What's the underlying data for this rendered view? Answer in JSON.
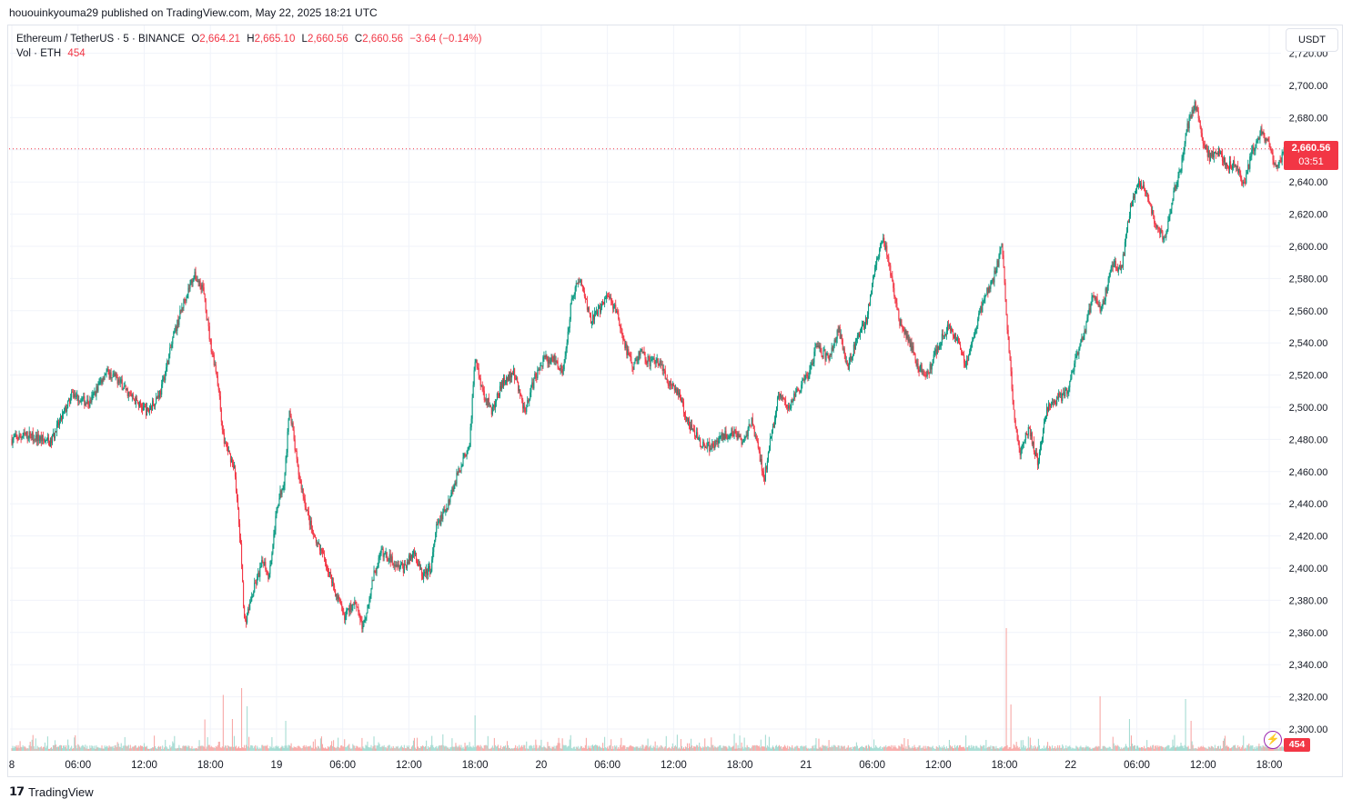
{
  "published_line": "hououinkyouma29 published on TradingView.com, May 22, 2025 18:21 UTC",
  "legend": {
    "symbol": "Ethereum / TetherUS · 5 · BINANCE",
    "o_label": "O",
    "o": "2,664.21",
    "h_label": "H",
    "h": "2,665.10",
    "l_label": "L",
    "l": "2,660.56",
    "c_label": "C",
    "c": "2,660.56",
    "change": "−3.64 (−0.14%)",
    "vol_label": "Vol · ETH",
    "vol_value": "454"
  },
  "unit_button": "USDT",
  "last_price_label": "2,660.56",
  "countdown": "03:51",
  "volume_tag": "454",
  "footer_brand": "TradingView",
  "colors": {
    "up": "#089981",
    "down": "#f23645",
    "grid": "#f0f3fa",
    "text": "#131722",
    "accent": "#f23645"
  },
  "icons": {
    "brand": "tradingview-logo-icon",
    "bolt": "lightning-icon"
  },
  "chart_data": {
    "type": "candlestick",
    "symbol": "ETHUSDT",
    "ylim": [
      2290,
      2728
    ],
    "y_ticks": [
      2300,
      2320,
      2340,
      2360,
      2380,
      2400,
      2420,
      2440,
      2460,
      2480,
      2500,
      2520,
      2540,
      2560,
      2580,
      2600,
      2620,
      2640,
      2660,
      2680,
      2700,
      2720
    ],
    "y_tick_labels": [
      "2,300.00",
      "2,320.00",
      "2,340.00",
      "2,360.00",
      "2,380.00",
      "2,400.00",
      "2,420.00",
      "2,440.00",
      "2,460.00",
      "2,480.00",
      "2,500.00",
      "2,520.00",
      "2,540.00",
      "2,560.00",
      "2,580.00",
      "2,600.00",
      "2,620.00",
      "2,640.00",
      "2,660.00",
      "2,680.00",
      "2,700.00",
      "2,720.00"
    ],
    "x_ticks": [
      {
        "label": "8",
        "hours": 0
      },
      {
        "label": "06:00",
        "hours": 6
      },
      {
        "label": "12:00",
        "hours": 12
      },
      {
        "label": "18:00",
        "hours": 18
      },
      {
        "label": "19",
        "hours": 24
      },
      {
        "label": "06:00",
        "hours": 30
      },
      {
        "label": "12:00",
        "hours": 36
      },
      {
        "label": "18:00",
        "hours": 42
      },
      {
        "label": "20",
        "hours": 48
      },
      {
        "label": "06:00",
        "hours": 54
      },
      {
        "label": "12:00",
        "hours": 60
      },
      {
        "label": "18:00",
        "hours": 66
      },
      {
        "label": "21",
        "hours": 72
      },
      {
        "label": "06:00",
        "hours": 78
      },
      {
        "label": "12:00",
        "hours": 84
      },
      {
        "label": "18:00",
        "hours": 90
      },
      {
        "label": "22",
        "hours": 96
      },
      {
        "label": "06:00",
        "hours": 102
      },
      {
        "label": "12:00",
        "hours": 108
      },
      {
        "label": "18:00",
        "hours": 114
      }
    ],
    "x_range_hours": [
      0,
      115.4
    ],
    "price_path": [
      [
        0,
        2480
      ],
      [
        1.5,
        2483
      ],
      [
        3.5,
        2478
      ],
      [
        5.5,
        2508
      ],
      [
        7,
        2502
      ],
      [
        8.5,
        2522
      ],
      [
        9.5,
        2518
      ],
      [
        11,
        2505
      ],
      [
        12.3,
        2497
      ],
      [
        13.5,
        2510
      ],
      [
        14.7,
        2545
      ],
      [
        15.7,
        2568
      ],
      [
        16.5,
        2582
      ],
      [
        17.3,
        2575
      ],
      [
        18,
        2540
      ],
      [
        18.6,
        2520
      ],
      [
        19.2,
        2480
      ],
      [
        20.2,
        2462
      ],
      [
        20.8,
        2408
      ],
      [
        21.1,
        2365
      ],
      [
        22,
        2388
      ],
      [
        22.8,
        2405
      ],
      [
        23.3,
        2395
      ],
      [
        24.1,
        2440
      ],
      [
        24.7,
        2455
      ],
      [
        25.2,
        2500
      ],
      [
        25.9,
        2462
      ],
      [
        26.6,
        2440
      ],
      [
        27.4,
        2418
      ],
      [
        28.4,
        2405
      ],
      [
        29.2,
        2388
      ],
      [
        30.1,
        2370
      ],
      [
        31.2,
        2380
      ],
      [
        31.8,
        2362
      ],
      [
        32.8,
        2395
      ],
      [
        33.5,
        2410
      ],
      [
        34.5,
        2405
      ],
      [
        35.5,
        2400
      ],
      [
        36.5,
        2410
      ],
      [
        37.2,
        2395
      ],
      [
        38,
        2400
      ],
      [
        38.5,
        2425
      ],
      [
        39.5,
        2440
      ],
      [
        40.5,
        2460
      ],
      [
        41.5,
        2478
      ],
      [
        42,
        2530
      ],
      [
        42.8,
        2508
      ],
      [
        43.5,
        2498
      ],
      [
        44.5,
        2515
      ],
      [
        45.5,
        2522
      ],
      [
        46.5,
        2498
      ],
      [
        47.5,
        2520
      ],
      [
        48.3,
        2530
      ],
      [
        49.3,
        2530
      ],
      [
        50,
        2522
      ],
      [
        50.8,
        2570
      ],
      [
        51.5,
        2580
      ],
      [
        52.5,
        2555
      ],
      [
        53.3,
        2560
      ],
      [
        54,
        2570
      ],
      [
        54.8,
        2560
      ],
      [
        55.5,
        2540
      ],
      [
        56.3,
        2525
      ],
      [
        57,
        2535
      ],
      [
        57.8,
        2528
      ],
      [
        58.5,
        2530
      ],
      [
        59.3,
        2518
      ],
      [
        60.3,
        2510
      ],
      [
        61.5,
        2488
      ],
      [
        62.5,
        2478
      ],
      [
        63.5,
        2475
      ],
      [
        64.5,
        2482
      ],
      [
        65.5,
        2485
      ],
      [
        66.3,
        2478
      ],
      [
        67.1,
        2492
      ],
      [
        67.8,
        2470
      ],
      [
        68.2,
        2455
      ],
      [
        68.8,
        2480
      ],
      [
        69.6,
        2510
      ],
      [
        70.4,
        2500
      ],
      [
        71.3,
        2510
      ],
      [
        72.2,
        2520
      ],
      [
        73,
        2538
      ],
      [
        74,
        2530
      ],
      [
        75,
        2548
      ],
      [
        75.8,
        2525
      ],
      [
        76.5,
        2540
      ],
      [
        77.5,
        2555
      ],
      [
        78.3,
        2590
      ],
      [
        79,
        2605
      ],
      [
        79.5,
        2590
      ],
      [
        80.4,
        2555
      ],
      [
        81.3,
        2542
      ],
      [
        82.2,
        2525
      ],
      [
        83,
        2520
      ],
      [
        84,
        2538
      ],
      [
        84.8,
        2550
      ],
      [
        85.8,
        2540
      ],
      [
        86.5,
        2525
      ],
      [
        87.3,
        2548
      ],
      [
        88.2,
        2568
      ],
      [
        89,
        2580
      ],
      [
        89.8,
        2600
      ],
      [
        90.3,
        2545
      ],
      [
        90.8,
        2500
      ],
      [
        91.4,
        2470
      ],
      [
        92.2,
        2488
      ],
      [
        93,
        2465
      ],
      [
        93.8,
        2498
      ],
      [
        94.8,
        2505
      ],
      [
        95.7,
        2510
      ],
      [
        96.5,
        2530
      ],
      [
        97.2,
        2545
      ],
      [
        98,
        2570
      ],
      [
        98.8,
        2560
      ],
      [
        99.8,
        2590
      ],
      [
        100.6,
        2585
      ],
      [
        101.4,
        2625
      ],
      [
        102.3,
        2640
      ],
      [
        103,
        2632
      ],
      [
        103.8,
        2610
      ],
      [
        104.6,
        2605
      ],
      [
        105.4,
        2635
      ],
      [
        106,
        2650
      ],
      [
        106.6,
        2675
      ],
      [
        107.3,
        2688
      ],
      [
        107.9,
        2668
      ],
      [
        108.6,
        2655
      ],
      [
        109.4,
        2660
      ],
      [
        110.2,
        2650
      ],
      [
        111,
        2652
      ],
      [
        111.7,
        2638
      ],
      [
        112.5,
        2660
      ],
      [
        113.3,
        2672
      ],
      [
        114,
        2662
      ],
      [
        114.7,
        2648
      ],
      [
        115.4,
        2660.56
      ]
    ],
    "volume_spikes": [
      {
        "hours": 17.5,
        "value": 690
      },
      {
        "hours": 19.2,
        "value": 1230
      },
      {
        "hours": 20,
        "value": 700
      },
      {
        "hours": 20.8,
        "value": 1380
      },
      {
        "hours": 21.3,
        "value": 980
      },
      {
        "hours": 24.8,
        "value": 660
      },
      {
        "hours": 42,
        "value": 780
      },
      {
        "hours": 90.2,
        "value": 2700
      },
      {
        "hours": 90.6,
        "value": 1020
      },
      {
        "hours": 98.7,
        "value": 1200
      },
      {
        "hours": 101.3,
        "value": 700
      },
      {
        "hours": 106.4,
        "value": 1140
      },
      {
        "hours": 106.9,
        "value": 660
      }
    ],
    "vol_scale_max": 2800,
    "last_price": 2660.56,
    "grid": true,
    "legend_position": "top-left"
  }
}
